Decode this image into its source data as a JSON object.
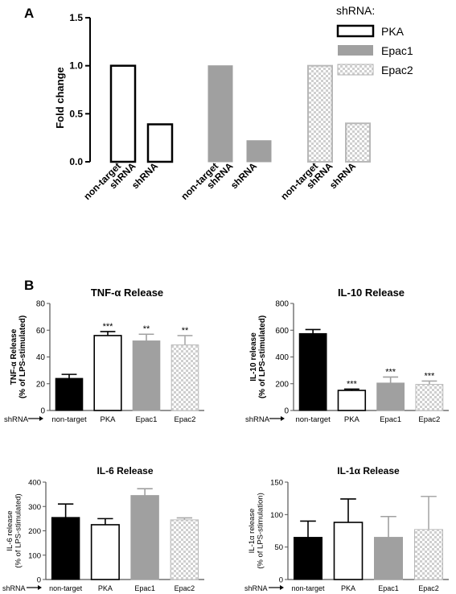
{
  "colors": {
    "black": "#000000",
    "gray": "#a0a0a0",
    "checker_light": "#ffffff",
    "checker_dark": "#d0d0d0"
  },
  "panel_a": {
    "label": "A",
    "legend_title": "shRNA:",
    "legend": [
      {
        "name": "PKA",
        "style": "white-black-border"
      },
      {
        "name": "Epac1",
        "style": "gray"
      },
      {
        "name": "Epac2",
        "style": "checker"
      }
    ]
  },
  "panel_b": {
    "label": "B",
    "shrna_label": "shRNA"
  },
  "chart_data": [
    {
      "type": "bar",
      "ylabel": "Fold change",
      "ylim": [
        0,
        1.5
      ],
      "yticks": [
        "0.0",
        "0.5",
        "1.0",
        "1.5"
      ],
      "categories": [
        "non-target shRNA",
        "shRNA",
        "non-target shRNA",
        "shRNA",
        "non-target shRNA",
        "shRNA"
      ],
      "groups": [
        "PKA",
        "PKA",
        "Epac1",
        "Epac1",
        "Epac2",
        "Epac2"
      ],
      "values": [
        1.0,
        0.39,
        1.0,
        0.22,
        1.0,
        0.4
      ]
    },
    {
      "type": "bar",
      "title": "TNF-α Release",
      "ylabel": "TNF-α Release (% of LPS-stimulated)",
      "ylim": [
        0,
        80
      ],
      "yticks": [
        "0",
        "20",
        "40",
        "60",
        "80"
      ],
      "categories": [
        "non-target",
        "PKA",
        "Epac1",
        "Epac2"
      ],
      "values": [
        24,
        56,
        52,
        49
      ],
      "errors": [
        3,
        3,
        5,
        7
      ],
      "significance": [
        "",
        "***",
        "**",
        "**"
      ]
    },
    {
      "type": "bar",
      "title": "IL-10 Release",
      "ylabel": "IL-10 release (% of LPS-stimulated)",
      "ylim": [
        0,
        800
      ],
      "yticks": [
        "0",
        "200",
        "400",
        "600",
        "800"
      ],
      "categories": [
        "non-target",
        "PKA",
        "Epac1",
        "Epac2"
      ],
      "values": [
        575,
        150,
        205,
        195
      ],
      "errors": [
        30,
        10,
        45,
        25
      ],
      "significance": [
        "",
        "***",
        "***",
        "***"
      ]
    },
    {
      "type": "bar",
      "title": "IL-6 Release",
      "ylabel": "IL-6 release (% of LPS-stimulated)",
      "ylim": [
        0,
        400
      ],
      "yticks": [
        "0",
        "100",
        "200",
        "300",
        "400"
      ],
      "categories": [
        "non-target",
        "PKA",
        "Epac1",
        "Epac2"
      ],
      "values": [
        255,
        225,
        345,
        245
      ],
      "errors": [
        55,
        25,
        28,
        8
      ],
      "significance": [
        "",
        "",
        "",
        ""
      ]
    },
    {
      "type": "bar",
      "title": "IL-1α Release",
      "ylabel": "IL-1α release (% of LPS-stimulation)",
      "ylim": [
        0,
        150
      ],
      "yticks": [
        "0",
        "50",
        "100",
        "150"
      ],
      "categories": [
        "non-target",
        "PKA",
        "Epac1",
        "Epac2"
      ],
      "values": [
        65,
        88,
        65,
        77
      ],
      "errors": [
        25,
        36,
        32,
        51
      ],
      "significance": [
        "",
        "",
        "",
        ""
      ]
    }
  ]
}
